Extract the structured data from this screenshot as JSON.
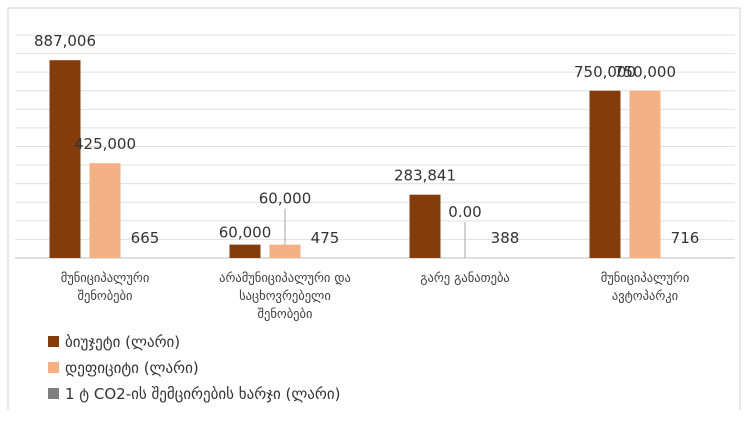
{
  "chart_data": {
    "type": "bar",
    "categories": [
      [
        "მუნიციპალური",
        "შენობები"
      ],
      [
        "არამუნიციპალური და",
        "საცხოვრებელი",
        "შენობები"
      ],
      [
        "გარე განათება"
      ],
      [
        "მუნიციპალური",
        "ავტოპარკი"
      ]
    ],
    "series": [
      {
        "name": "ბიუჯეტი (ლარი)",
        "color": "#843c0c",
        "values": [
          887006,
          60000,
          283841,
          750000
        ],
        "labels": [
          "887,006",
          "60,000",
          "283,841",
          "750,000"
        ]
      },
      {
        "name": "დეფიციტი (ლარი)",
        "color": "#f4b183",
        "values": [
          425000,
          60000,
          0,
          750000
        ],
        "labels": [
          "425,000",
          "60,000",
          "0.00",
          "750,000"
        ]
      },
      {
        "name": "1 ტ CO2-ის შემცირების ხარჯი (ლარი)",
        "color": "#7f7f7f",
        "values": [
          665,
          475,
          388,
          716
        ],
        "labels": [
          "665",
          "475",
          "388",
          "716"
        ]
      }
    ],
    "ylim": [
      0,
      1000000
    ],
    "grid": true,
    "legend_position": "bottom-left"
  }
}
